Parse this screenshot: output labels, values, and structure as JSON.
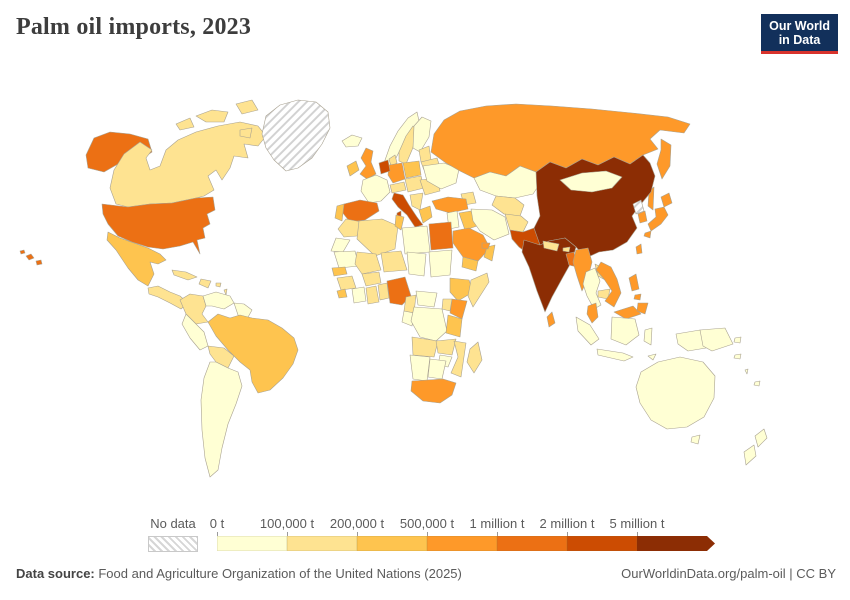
{
  "title": "Palm oil imports, 2023",
  "logo": {
    "line1": "Our World",
    "line2": "in Data"
  },
  "legend": {
    "no_data_label": "No data",
    "bins": [
      {
        "label": "0 t",
        "color": "#ffffd4"
      },
      {
        "label": "100,000 t",
        "color": "#fee391"
      },
      {
        "label": "200,000 t",
        "color": "#fec44f"
      },
      {
        "label": "500,000 t",
        "color": "#fe9929"
      },
      {
        "label": "1 million t",
        "color": "#ec7014"
      },
      {
        "label": "2 million t",
        "color": "#cc4c02"
      },
      {
        "label": "5 million t",
        "color": "#8c2d04"
      }
    ]
  },
  "footer": {
    "source_label": "Data source:",
    "source_text": " Food and Agriculture Organization of the United Nations (2025)",
    "right_text": "OurWorldinData.org/palm-oil | CC BY"
  },
  "chart_data": {
    "type": "heatmap",
    "subtype": "choropleth-world-map",
    "title": "Palm oil imports, 2023",
    "unit": "tonnes",
    "legend_position": "bottom",
    "bin_ranges": [
      "0-100,000 t",
      "100,000-200,000 t",
      "200,000-500,000 t",
      "500,000 t-1 million t",
      "1-2 million t",
      "2-5 million t",
      "5+ million t"
    ],
    "no_data_countries": [
      "greenland",
      "north_korea"
    ],
    "country_bins": {
      "united_states": 4,
      "canada": 1,
      "greenland": "no_data",
      "iceland": 0,
      "mexico": 2,
      "central_america": 1,
      "cuba": 1,
      "hispaniola": 1,
      "caribbean_small": 1,
      "colombia": 1,
      "venezuela": 0,
      "guyanas": 0,
      "brazil": 2,
      "peru": 0,
      "bolivia": 1,
      "argentina": 0,
      "ireland": 2,
      "united_kingdom": 3,
      "norway": 0,
      "sweden": 1,
      "finland": 0,
      "denmark": 1,
      "baltics": 1,
      "belarus": 1,
      "poland": 2,
      "germany": 3,
      "netherlands": 5,
      "france": 0,
      "spain": 4,
      "portugal": 2,
      "italy": 5,
      "alpine": 1,
      "central_europe": 1,
      "romania": 1,
      "balkans": 1,
      "greece": 2,
      "ukraine": 0,
      "russia": 3,
      "kazakhstan": 0,
      "caucasus": 1,
      "central_asia": 1,
      "turkey": 3,
      "levant": 0,
      "iraq": 2,
      "iran": 0,
      "saudi_arabia": 3,
      "yemen": 2,
      "oman": 2,
      "uae": 3,
      "afghanistan": 1,
      "pakistan": 5,
      "india": 6,
      "nepal": 1,
      "bhutan": 1,
      "bangladesh": 4,
      "sri_lanka": 3,
      "china": 6,
      "mongolia": 0,
      "north_korea": "no_data",
      "south_korea": 3,
      "japan": 3,
      "taiwan": 3,
      "myanmar": 3,
      "thailand": 0,
      "laos": 1,
      "cambodia": 1,
      "vietnam": 3,
      "malaysia": 3,
      "indonesia": 0,
      "papua_new_guinea": 0,
      "philippines": 3,
      "australia": 0,
      "new_zealand": 0,
      "fiji": 0,
      "solomon_islands": 0,
      "vanuatu": 0,
      "morocco": 1,
      "western_sahara": 0,
      "algeria": 1,
      "tunisia": 2,
      "libya": 0,
      "egypt": 4,
      "mauritania": 0,
      "mali": 1,
      "niger": 1,
      "chad": 0,
      "sudan": 0,
      "senegal": 2,
      "guinea": 1,
      "sierra_leone": 2,
      "ivory_coast": 0,
      "ghana": 1,
      "togo_benin": 1,
      "burkina_faso": 1,
      "nigeria": 4,
      "cameroon": 1,
      "car": 0,
      "congo": 0,
      "ethiopia": 2,
      "somalia": 1,
      "kenya": 3,
      "uganda": 1,
      "drc": 0,
      "tanzania": 2,
      "angola": 1,
      "zambia": 1,
      "mozambique": 1,
      "zimbabwe": 0,
      "namibia": 0,
      "botswana": 0,
      "south_africa": 3,
      "madagascar": 1
    }
  }
}
